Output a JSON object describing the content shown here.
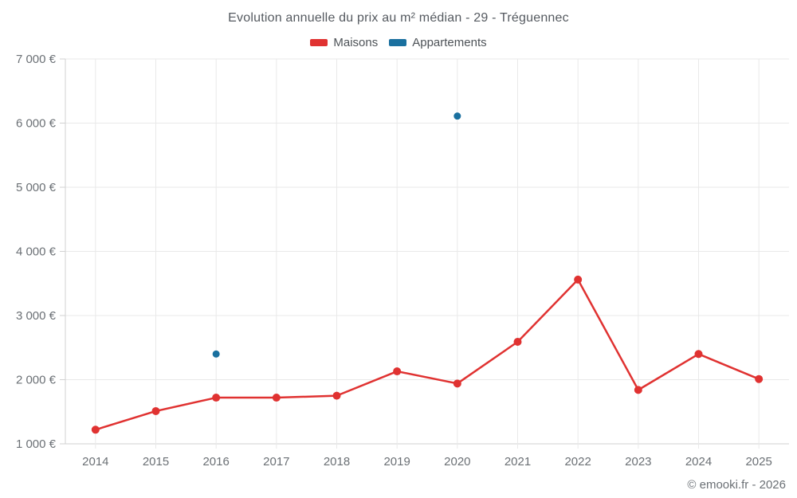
{
  "chart_data": {
    "type": "line",
    "title": "Evolution annuelle du prix au m² médian - 29 - Tréguennec",
    "categories": [
      "2014",
      "2015",
      "2016",
      "2017",
      "2018",
      "2019",
      "2020",
      "2021",
      "2022",
      "2023",
      "2024",
      "2025"
    ],
    "series": [
      {
        "name": "Maisons",
        "color": "#e03231",
        "draw_line": true,
        "point_radius": 5,
        "values": [
          1220,
          1510,
          1720,
          1720,
          1750,
          2130,
          1940,
          2590,
          3560,
          1840,
          2400,
          2010
        ]
      },
      {
        "name": "Appartements",
        "color": "#1a709f",
        "draw_line": false,
        "point_radius": 4.5,
        "values": [
          null,
          null,
          2400,
          null,
          null,
          null,
          6110,
          null,
          null,
          null,
          null,
          null
        ]
      }
    ],
    "ylim": [
      1000,
      7000
    ],
    "y_tick_step": 1000,
    "y_tick_labels": [
      "1 000 €",
      "2 000 €",
      "3 000 €",
      "4 000 €",
      "5 000 €",
      "6 000 €",
      "7 000 €"
    ],
    "grid": true,
    "legend_position": "top",
    "axis_text_color": "#6b7075",
    "grid_color": "#e9e9e9",
    "axis_line_color": "#d2d2d2"
  },
  "footer": {
    "credit": "© emooki.fr - 2026"
  }
}
